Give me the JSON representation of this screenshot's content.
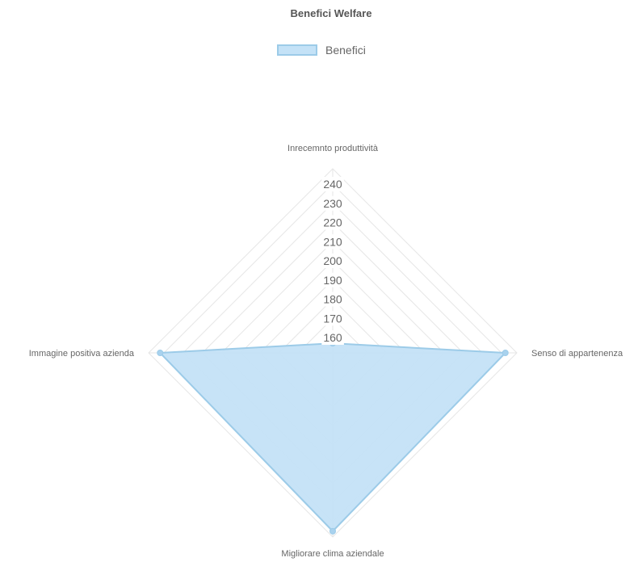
{
  "chart_data": {
    "type": "radar",
    "title": "Benefici Welfare",
    "categories": [
      "Inrecemnto produttività",
      "Senso di appartenenza",
      "Migliorare clima aziendale",
      "Immagine positiva azienda"
    ],
    "series": [
      {
        "name": "Benefici",
        "values": [
          157,
          242,
          245,
          242
        ]
      }
    ],
    "scale": {
      "min": 152,
      "max": 248,
      "ticks": [
        160,
        170,
        180,
        190,
        200,
        210,
        220,
        230,
        240
      ]
    },
    "grid": true,
    "legend_position": "top"
  },
  "colors": {
    "fill": "#c4e2f7",
    "stroke": "#9ccbe8",
    "point": "#a9d2ee",
    "grid": "#e6e6e6",
    "title": "#555555",
    "text": "#666666"
  }
}
